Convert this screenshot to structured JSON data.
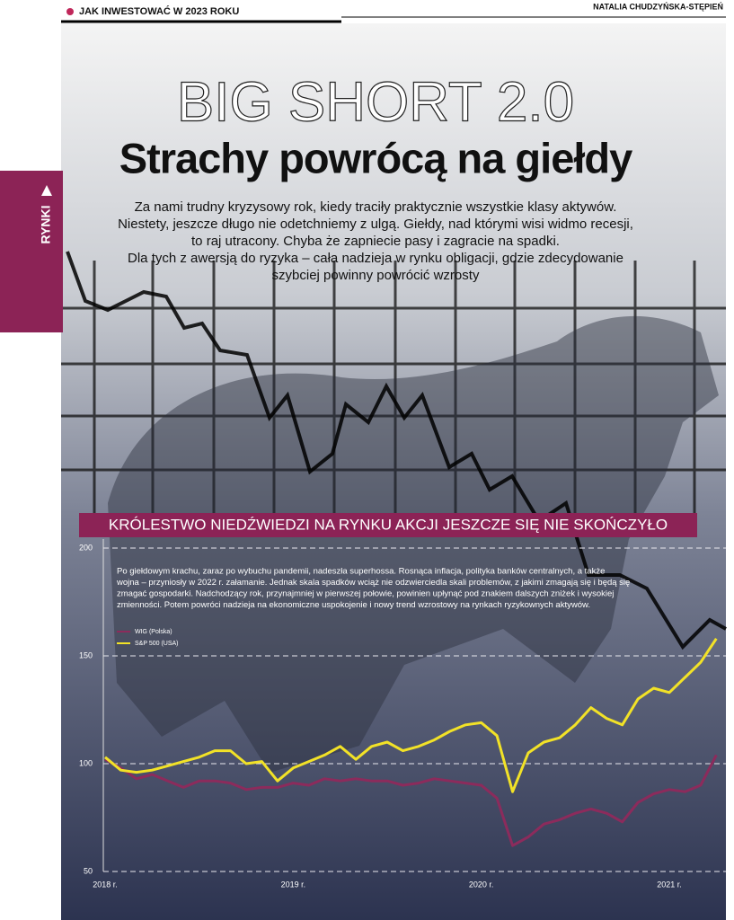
{
  "header": {
    "section": "JAK INWESTOWAĆ W 2023 ROKU",
    "author": "NATALIA CHUDZYŃSKA-STĘPIEŃ",
    "tab": "RYNKI"
  },
  "article": {
    "kicker": "BIG SHORT 2.0",
    "title": "Strachy powrócą na giełdy",
    "lead": [
      "Za nami trudny kryzysowy rok, kiedy traciły praktycznie wszystkie klasy aktywów.",
      "Niestety, jeszcze długo nie odetchniemy z ulgą. Giełdy, nad którymi wisi widmo recesji,",
      "to raj utracony. Chyba że zapniecie pasy i zagracie na spadki.",
      "Dla tych z awersją do ryzyka – cała nadzieja w rynku obligacji, gdzie zdecydowanie",
      "szybciej powinny powrócić wzrosty"
    ],
    "section_heading": "KRÓLESTWO NIEDŹWIEDZI NA RYNKU AKCJI JESZCZE SIĘ NIE SKOŃCZYŁO",
    "chart_text": [
      "Po giełdowym krachu, zaraz po wybuchu pandemii, nadeszła superhossa. Rosnąca inflacja, polityka banków centralnych, a także",
      "wojna – przyniosły w 2022 r. załamanie. Jednak skala spadków wciąż nie odzwierciedla skali problemów, z jakimi zmagają się i będą się",
      "zmagać gospodarki. Nadchodzący rok, przynajmniej w pierwszej połowie, powinien upłynąć pod znakiem dalszych zniżek i wysokiej",
      "zmienności. Potem powróci nadzieja na ekonomiczne uspokojenie i nowy trend wzrostowy na rynkach ryzykownych aktywów."
    ]
  },
  "chart_data": {
    "type": "line",
    "categories": [
      "2018 r.",
      null,
      null,
      null,
      null,
      null,
      null,
      null,
      null,
      null,
      null,
      null,
      "2019 r.",
      null,
      null,
      null,
      null,
      null,
      null,
      null,
      null,
      null,
      null,
      null,
      "2020 r.",
      null,
      null,
      null,
      null,
      null,
      null,
      null,
      null,
      null,
      null,
      null,
      "2021 r.",
      null,
      null,
      null
    ],
    "series": [
      {
        "name": "WIG (Polska)",
        "color": "#8c2b5c",
        "values": [
          102,
          98,
          93,
          95,
          92,
          89,
          92,
          92,
          91,
          88,
          89,
          89,
          91,
          90,
          93,
          92,
          93,
          92,
          92,
          90,
          91,
          93,
          92,
          91,
          90,
          84,
          62,
          66,
          72,
          74,
          77,
          79,
          77,
          73,
          82,
          86,
          88,
          87,
          90,
          104
        ]
      },
      {
        "name": "S&P 500 (USA)",
        "color": "#f2e227",
        "values": [
          103,
          97,
          96,
          97,
          99,
          101,
          103,
          106,
          106,
          100,
          101,
          92,
          98,
          101,
          104,
          108,
          102,
          108,
          110,
          106,
          108,
          111,
          115,
          118,
          119,
          113,
          87,
          105,
          110,
          112,
          118,
          126,
          121,
          118,
          130,
          135,
          133,
          140,
          147,
          158
        ]
      }
    ],
    "ylim": [
      50,
      200
    ],
    "yticks": [
      50,
      100,
      150,
      200
    ],
    "grid": true,
    "legend": "upper-left"
  }
}
